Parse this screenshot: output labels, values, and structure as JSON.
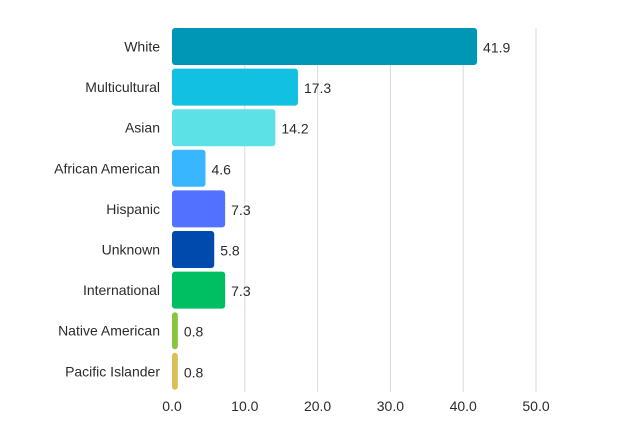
{
  "chart_data": {
    "type": "bar",
    "orientation": "horizontal",
    "title": "",
    "xlabel": "",
    "ylabel": "",
    "categories": [
      "White",
      "Multicultural",
      "Asian",
      "African American",
      "Hispanic",
      "Unknown",
      "International",
      "Native American",
      "Pacific Islander"
    ],
    "values": [
      41.9,
      17.3,
      14.2,
      4.6,
      7.3,
      5.8,
      7.3,
      0.8,
      0.8
    ],
    "value_labels": [
      "41.9",
      "17.3",
      "14.2",
      "4.6",
      "7.3",
      "5.8",
      "7.3",
      "0.8",
      "0.8"
    ],
    "colors": [
      "#0096b5",
      "#12c1e1",
      "#5ce1e6",
      "#38b6ff",
      "#5271ff",
      "#004aad",
      "#00bf63",
      "#8ac43f",
      "#d9bf55"
    ],
    "xlim": [
      0,
      50
    ],
    "xticks": [
      0,
      10,
      20,
      30,
      40,
      50
    ],
    "xtick_labels": [
      "0.0",
      "10.0",
      "20.0",
      "30.0",
      "40.0",
      "50.0"
    ],
    "grid": true,
    "legend": "none"
  }
}
